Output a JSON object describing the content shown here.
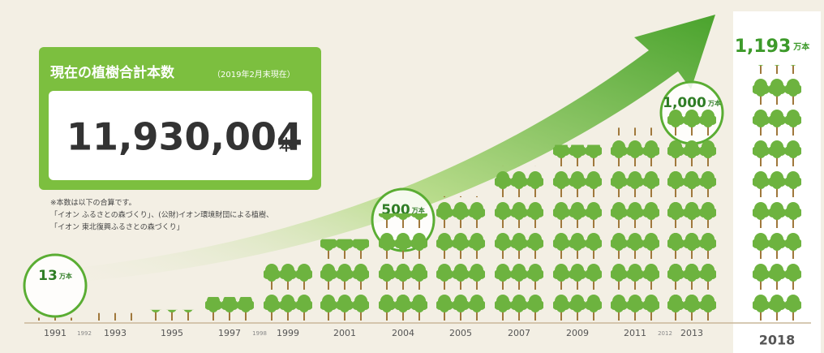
{
  "total_box": {
    "title": "現在の植樹合計本数",
    "as_of": "（2019年2月末現在）",
    "total": "11,930,004",
    "unit": "本",
    "notes": [
      "※本数は以下の合算です。",
      "「イオン ふるさとの森づくり」、(公財)イオン環境財団による植樹、",
      "「イオン 東北復興ふるさとの森づくり」"
    ]
  },
  "chart_data": {
    "type": "pictograph",
    "categories": [
      "1991",
      "1993",
      "1995",
      "1997",
      "1999",
      "2001",
      "2004",
      "2005",
      "2007",
      "2009",
      "2011",
      "2013",
      "2018"
    ],
    "values": [
      13,
      35,
      50,
      110,
      270,
      380,
      500,
      580,
      720,
      820,
      900,
      1000,
      1193
    ],
    "value_labels": [
      "13",
      null,
      null,
      null,
      null,
      null,
      "500",
      null,
      null,
      null,
      null,
      "1,000",
      "1,193"
    ],
    "value_unit": "万本",
    "minor_years": [
      "1992",
      "1998",
      "2012"
    ],
    "color": "#6db33f"
  }
}
